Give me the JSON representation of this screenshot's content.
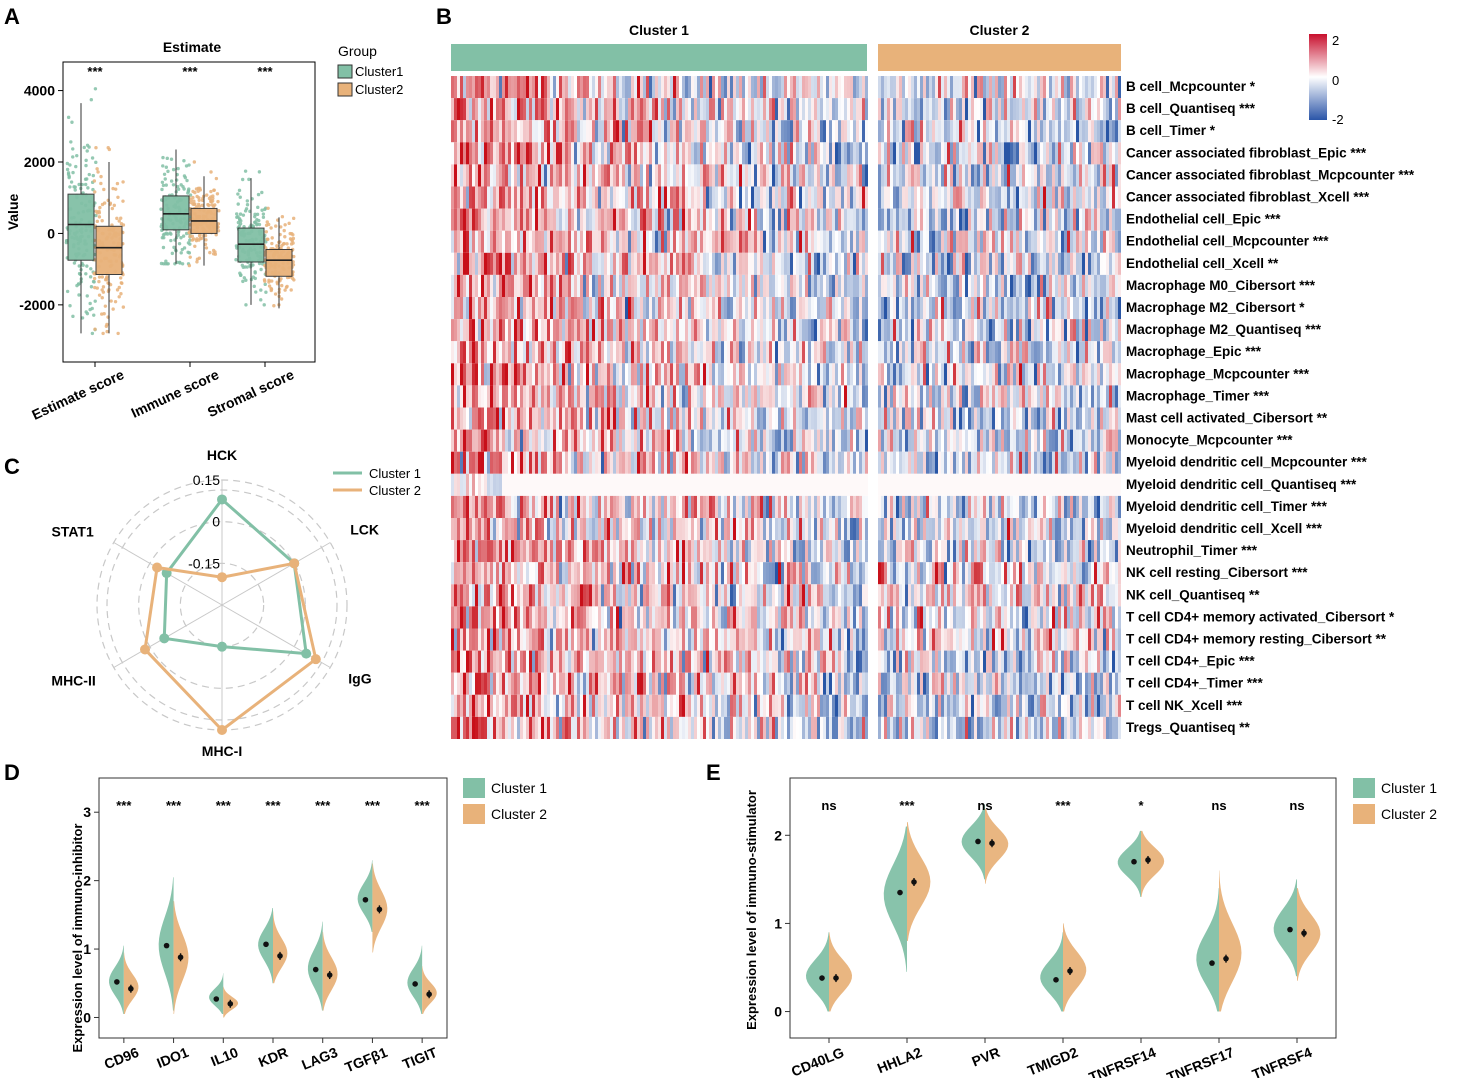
{
  "colors": {
    "cluster1": "#82c0a6",
    "cluster2": "#e8b27a",
    "hm_red": "#c8102e",
    "hm_white": "#ffffff",
    "hm_blue": "#2b55a8",
    "grid": "#c8c8c8"
  },
  "chart_data": [
    {
      "panel": "A",
      "type": "box",
      "title": "Estimate",
      "ylabel": "Value",
      "ylim": [
        -3600,
        4800
      ],
      "yticks": [
        -2000,
        0,
        2000,
        4000
      ],
      "ytick_labels": [
        "-2000",
        "0",
        "2000",
        "4000"
      ],
      "legend_title": "Group",
      "series_names": [
        "Cluster1",
        "Cluster2"
      ],
      "categories": [
        "Estimate score",
        "Immune score",
        "Stromal score"
      ],
      "significance": [
        "***",
        "***",
        "***"
      ],
      "boxes": [
        {
          "category": "Estimate score",
          "group": "Cluster1",
          "whislo": -2800,
          "q1": -750,
          "med": 250,
          "q3": 1100,
          "whishi": 3650
        },
        {
          "category": "Estimate score",
          "group": "Cluster2",
          "whislo": -2800,
          "q1": -1150,
          "med": -400,
          "q3": 200,
          "whishi": 2000
        },
        {
          "category": "Immune score",
          "group": "Cluster1",
          "whislo": -850,
          "q1": 100,
          "med": 550,
          "q3": 1050,
          "whishi": 2350
        },
        {
          "category": "Immune score",
          "group": "Cluster2",
          "whislo": -900,
          "q1": 0,
          "med": 350,
          "q3": 700,
          "whishi": 1600
        },
        {
          "category": "Stromal score",
          "group": "Cluster1",
          "whislo": -2000,
          "q1": -800,
          "med": -300,
          "q3": 150,
          "whishi": 1550
        },
        {
          "category": "Stromal score",
          "group": "Cluster2",
          "whislo": -2100,
          "q1": -1200,
          "med": -750,
          "q3": -450,
          "whishi": 450
        }
      ]
    },
    {
      "panel": "B",
      "type": "heatmap",
      "column_groups": [
        "Cluster 1",
        "Cluster 2"
      ],
      "legend_range": [
        -2,
        2
      ],
      "legend_ticks": [
        "2",
        "0",
        "-2"
      ],
      "rows": [
        "B cell_Mcpcounter *",
        "B cell_Quantiseq ***",
        "B cell_Timer *",
        "Cancer associated fibroblast_Epic ***",
        "Cancer associated fibroblast_Mcpcounter ***",
        "Cancer associated fibroblast_Xcell ***",
        "Endothelial cell_Epic ***",
        "Endothelial cell_Mcpcounter ***",
        "Endothelial cell_Xcell **",
        "Macrophage M0_Cibersort ***",
        "Macrophage M2_Cibersort *",
        "Macrophage M2_Quantiseq ***",
        "Macrophage_Epic ***",
        "Macrophage_Mcpcounter ***",
        "Macrophage_Timer ***",
        "Mast cell activated_Cibersort **",
        "Monocyte_Mcpcounter ***",
        "Myeloid dendritic cell_Mcpcounter ***",
        "Myeloid dendritic cell_Quantiseq ***",
        "Myeloid dendritic cell_Timer ***",
        "Myeloid dendritic cell_Xcell ***",
        "Neutrophil_Timer ***",
        "NK cell resting_Cibersort ***",
        "NK cell_Quantiseq **",
        "T cell CD4+ memory activated_Cibersort *",
        "T cell CD4+ memory resting_Cibersort **",
        "T cell CD4+_Epic ***",
        "T cell CD4+_Timer ***",
        "T cell NK_Xcell ***",
        "Tregs_Quantiseq **"
      ]
    },
    {
      "panel": "C",
      "type": "radar",
      "axes": [
        "HCK",
        "LCK",
        "IgG",
        "MHC-I",
        "MHC-II",
        "STAT1"
      ],
      "rlim": [
        -0.3,
        0.15
      ],
      "rticks": [
        0.15,
        0,
        -0.15
      ],
      "rtick_labels": [
        "0.15",
        "0",
        "-0.15"
      ],
      "series": [
        {
          "name": "Cluster 1",
          "values": [
            0.08,
            0.0,
            0.05,
            -0.15,
            -0.06,
            -0.07
          ]
        },
        {
          "name": "Cluster 2",
          "values": [
            -0.2,
            0.0,
            0.09,
            0.15,
            0.02,
            -0.03
          ]
        }
      ]
    },
    {
      "panel": "D",
      "type": "violin",
      "ylabel": "Expression level of immuno-inhibitor",
      "ylim": [
        -0.3,
        3.5
      ],
      "yticks": [
        0,
        1,
        2,
        3
      ],
      "ytick_labels": [
        "0",
        "1",
        "2",
        "3"
      ],
      "series_names": [
        "Cluster 1",
        "Cluster 2"
      ],
      "categories": [
        "CD96",
        "IDO1",
        "IL10",
        "KDR",
        "LAG3",
        "TGFβ1",
        "TIGIT"
      ],
      "significance": [
        "***",
        "***",
        "***",
        "***",
        "***",
        "***",
        "***"
      ],
      "cluster1_means": [
        0.52,
        1.05,
        0.27,
        1.07,
        0.7,
        1.72,
        0.49
      ],
      "cluster2_means": [
        0.42,
        0.88,
        0.2,
        0.9,
        0.62,
        1.58,
        0.34
      ],
      "cluster1_range": [
        [
          0.05,
          1.05
        ],
        [
          0.1,
          2.05
        ],
        [
          0.05,
          0.65
        ],
        [
          0.5,
          1.6
        ],
        [
          0.1,
          1.4
        ],
        [
          1.25,
          2.3
        ],
        [
          0.05,
          1.05
        ]
      ],
      "cluster2_range": [
        [
          0.05,
          0.95
        ],
        [
          0.05,
          1.7
        ],
        [
          0.0,
          0.45
        ],
        [
          0.5,
          1.55
        ],
        [
          0.1,
          1.25
        ],
        [
          0.95,
          2.25
        ],
        [
          0.05,
          0.75
        ]
      ]
    },
    {
      "panel": "E",
      "type": "violin",
      "ylabel": "Expression level of immuno-stimulator",
      "ylim": [
        -0.3,
        2.65
      ],
      "yticks": [
        0,
        1,
        2
      ],
      "ytick_labels": [
        "0",
        "1",
        "2"
      ],
      "series_names": [
        "Cluster 1",
        "Cluster 2"
      ],
      "categories": [
        "CD40LG",
        "HHLA2",
        "PVR",
        "TMIGD2",
        "TNFRSF14",
        "TNFRSF17",
        "TNFRSF4"
      ],
      "significance": [
        "ns",
        "***",
        "ns",
        "***",
        "*",
        "ns",
        "ns"
      ],
      "cluster1_means": [
        0.38,
        1.35,
        1.93,
        0.36,
        1.7,
        0.55,
        0.93
      ],
      "cluster2_means": [
        0.38,
        1.47,
        1.91,
        0.46,
        1.72,
        0.6,
        0.89
      ],
      "cluster1_range": [
        [
          0.0,
          0.9
        ],
        [
          0.45,
          2.1
        ],
        [
          1.5,
          2.35
        ],
        [
          0.0,
          0.9
        ],
        [
          1.3,
          2.05
        ],
        [
          0.0,
          1.4
        ],
        [
          0.4,
          1.5
        ]
      ],
      "cluster2_range": [
        [
          0.0,
          0.9
        ],
        [
          0.8,
          2.15
        ],
        [
          1.45,
          2.3
        ],
        [
          0.0,
          1.0
        ],
        [
          1.3,
          2.05
        ],
        [
          0.0,
          1.6
        ],
        [
          0.35,
          1.4
        ]
      ]
    }
  ],
  "panel_labels": [
    "A",
    "B",
    "C",
    "D",
    "E"
  ]
}
